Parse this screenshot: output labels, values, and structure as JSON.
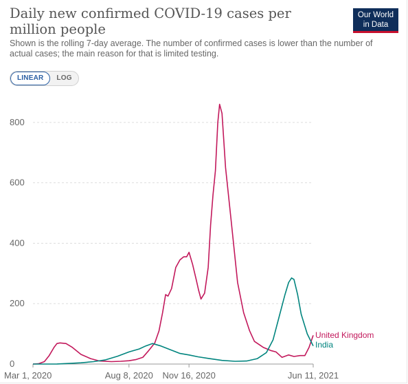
{
  "header": {
    "title": "Daily new confirmed COVID-19 cases per million people",
    "subtitle": "Shown is the rolling 7-day average. The number of confirmed cases is lower than the number of actual cases; the main reason for that is limited testing.",
    "logo_line1": "Our World",
    "logo_line2": "in Data"
  },
  "scale_toggle": {
    "linear_label": "LINEAR",
    "log_label": "LOG",
    "selected": "LINEAR"
  },
  "colors": {
    "uk": "#c2185b",
    "india": "#00847e",
    "grid": "#dddddd",
    "axis": "#999999"
  },
  "chart_data": {
    "type": "line",
    "title": "Daily new confirmed COVID-19 cases per million people",
    "x_range": [
      "2020-03-01",
      "2021-06-11"
    ],
    "ylim": [
      0,
      900
    ],
    "y_ticks": [
      0,
      200,
      400,
      600,
      800
    ],
    "x_ticks": [
      "Mar 1, 2020",
      "Aug 8, 2020",
      "Nov 16, 2020",
      "Jun 11, 2021"
    ],
    "grid": "horizontal dashed",
    "legend": "inline-right",
    "series": [
      {
        "name": "United Kingdom",
        "x": [
          "2020-03-01",
          "2020-03-10",
          "2020-03-20",
          "2020-03-28",
          "2020-04-05",
          "2020-04-10",
          "2020-04-15",
          "2020-04-25",
          "2020-05-05",
          "2020-05-20",
          "2020-06-05",
          "2020-06-20",
          "2020-07-10",
          "2020-07-25",
          "2020-08-08",
          "2020-08-20",
          "2020-08-31",
          "2020-09-10",
          "2020-09-20",
          "2020-09-27",
          "2020-10-03",
          "2020-10-08",
          "2020-10-12",
          "2020-10-18",
          "2020-10-25",
          "2020-11-01",
          "2020-11-07",
          "2020-11-12",
          "2020-11-16",
          "2020-11-22",
          "2020-11-28",
          "2020-12-02",
          "2020-12-06",
          "2020-12-12",
          "2020-12-18",
          "2020-12-22",
          "2020-12-26",
          "2020-12-30",
          "2021-01-03",
          "2021-01-06",
          "2021-01-10",
          "2021-01-16",
          "2021-01-25",
          "2021-02-05",
          "2021-02-15",
          "2021-02-25",
          "2021-03-05",
          "2021-03-20",
          "2021-04-01",
          "2021-04-10",
          "2021-04-20",
          "2021-05-01",
          "2021-05-10",
          "2021-05-20",
          "2021-05-28",
          "2021-06-04",
          "2021-06-11"
        ],
        "values": [
          0,
          1,
          8,
          28,
          55,
          68,
          70,
          68,
          56,
          32,
          18,
          10,
          8,
          9,
          11,
          15,
          22,
          45,
          70,
          110,
          170,
          230,
          225,
          250,
          320,
          345,
          355,
          355,
          370,
          330,
          280,
          245,
          215,
          235,
          320,
          460,
          560,
          640,
          800,
          860,
          830,
          650,
          480,
          270,
          170,
          110,
          75,
          55,
          45,
          40,
          22,
          30,
          25,
          28,
          28,
          55,
          95
        ]
      },
      {
        "name": "India",
        "x": [
          "2020-03-01",
          "2020-03-20",
          "2020-04-10",
          "2020-05-01",
          "2020-05-20",
          "2020-06-10",
          "2020-06-30",
          "2020-07-20",
          "2020-08-08",
          "2020-08-25",
          "2020-09-05",
          "2020-09-16",
          "2020-09-30",
          "2020-10-15",
          "2020-11-01",
          "2020-11-16",
          "2020-12-01",
          "2020-12-20",
          "2021-01-10",
          "2021-02-01",
          "2021-02-20",
          "2021-03-10",
          "2021-03-25",
          "2021-04-05",
          "2021-04-15",
          "2021-04-25",
          "2021-05-01",
          "2021-05-06",
          "2021-05-10",
          "2021-05-16",
          "2021-05-22",
          "2021-06-01",
          "2021-06-11"
        ],
        "values": [
          0,
          0,
          0.3,
          2,
          4,
          8,
          14,
          26,
          40,
          50,
          60,
          68,
          60,
          48,
          35,
          30,
          24,
          18,
          12,
          9,
          10,
          18,
          38,
          80,
          155,
          230,
          270,
          285,
          280,
          230,
          165,
          100,
          60
        ]
      }
    ]
  }
}
